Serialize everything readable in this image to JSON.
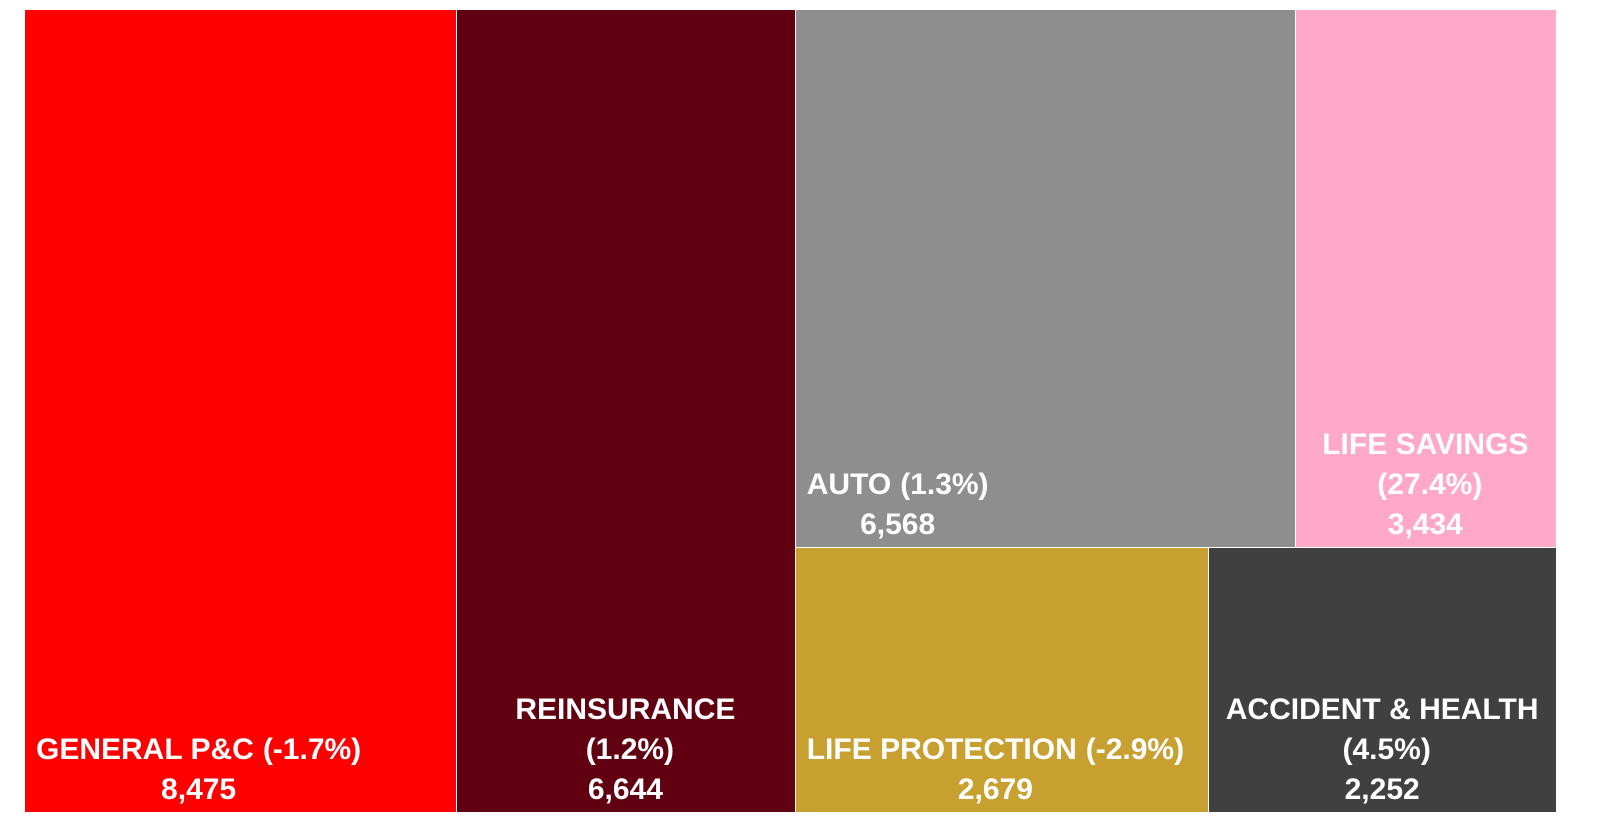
{
  "chart_data": {
    "type": "treemap",
    "categories": [
      "GENERAL P&C",
      "REINSURANCE",
      "AUTO",
      "LIFE SAVINGS",
      "LIFE PROTECTION",
      "ACCIDENT & HEALTH"
    ],
    "changes": [
      -1.7,
      1.2,
      1.3,
      27.4,
      -2.9,
      4.5
    ],
    "change_labels": [
      "(-1.7%)",
      "(1.2%)",
      "(1.3%)",
      "(27.4%)",
      "(-2.9%)",
      "(4.5%)"
    ],
    "values": [
      8475,
      6644,
      6568,
      3434,
      2679,
      2252
    ],
    "value_labels": [
      "8,475",
      "6,644",
      "6,568",
      "3,434",
      "2,679",
      "2,252"
    ],
    "colors": [
      "#ff0000",
      "#600010",
      "#8e8e8e",
      "#ffa8c8",
      "#c8a030",
      "#404040"
    ]
  }
}
